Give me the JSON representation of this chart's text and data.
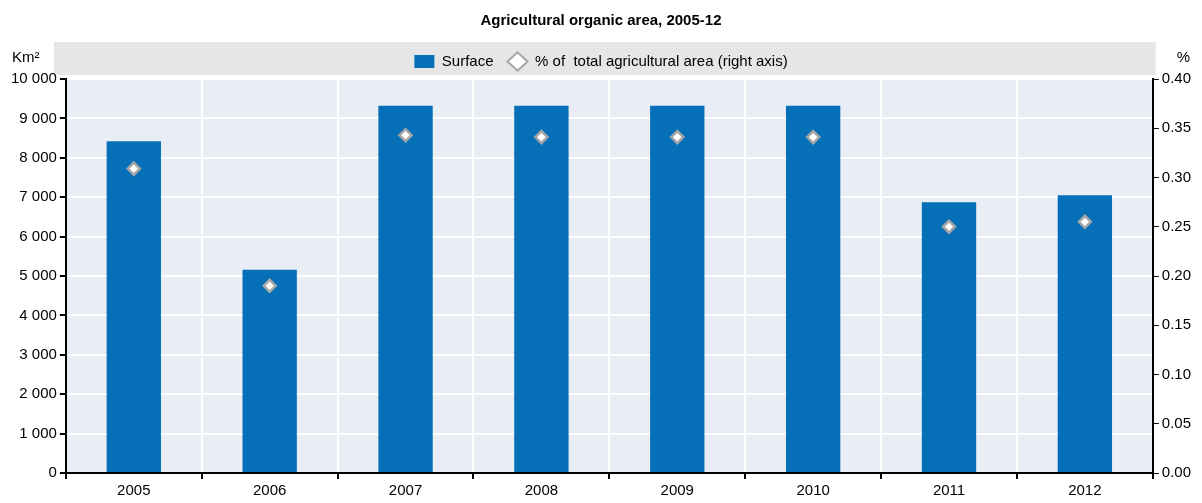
{
  "chart_data": {
    "type": "bar",
    "title": "Agricultural organic area, 2005-12",
    "ylabel": "Km²",
    "y2label": "%",
    "categories": [
      "2005",
      "2006",
      "2007",
      "2008",
      "2009",
      "2010",
      "2011",
      "2012"
    ],
    "series": [
      {
        "name": "Surface",
        "color": "#0570b8",
        "values": [
          8420,
          5160,
          9320,
          9320,
          9320,
          9320,
          6870,
          7050
        ]
      },
      {
        "name": "% of  total agricultural area (right axis)",
        "type": "scatter",
        "axis": "y2",
        "color": "#a6a6a6",
        "marker": "diamond",
        "values": [
          0.309,
          0.19,
          0.343,
          0.341,
          0.341,
          0.341,
          0.25,
          0.255
        ]
      }
    ],
    "ylim": [
      0,
      10000
    ],
    "yticks": [
      {
        "value": 0,
        "label": "0"
      },
      {
        "value": 1000,
        "label": "1 000"
      },
      {
        "value": 2000,
        "label": "2 000"
      },
      {
        "value": 3000,
        "label": "3 000"
      },
      {
        "value": 4000,
        "label": "4 000"
      },
      {
        "value": 5000,
        "label": "5 000"
      },
      {
        "value": 6000,
        "label": "6 000"
      },
      {
        "value": 7000,
        "label": "7 000"
      },
      {
        "value": 8000,
        "label": "8 000"
      },
      {
        "value": 9000,
        "label": "9 000"
      },
      {
        "value": 10000,
        "label": "10 000"
      }
    ],
    "y2lim": [
      0,
      0.4
    ],
    "y2ticks": [
      {
        "value": 0,
        "label": "0.00"
      },
      {
        "value": 0.05,
        "label": "0.05"
      },
      {
        "value": 0.1,
        "label": "0.10"
      },
      {
        "value": 0.15,
        "label": "0.15"
      },
      {
        "value": 0.2,
        "label": "0.20"
      },
      {
        "value": 0.25,
        "label": "0.25"
      },
      {
        "value": 0.3,
        "label": "0.30"
      },
      {
        "value": 0.35,
        "label": "0.35"
      },
      {
        "value": 0.4,
        "label": "0.40"
      }
    ],
    "grid": true,
    "legend": "top"
  }
}
